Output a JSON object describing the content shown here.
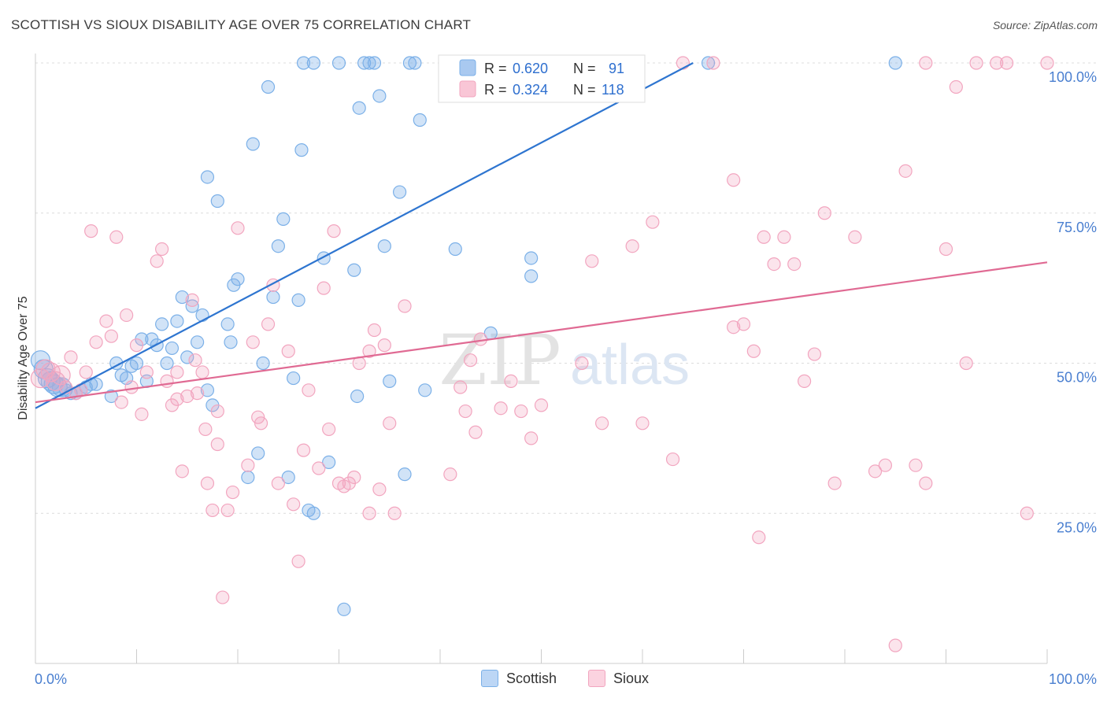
{
  "title": "SCOTTISH VS SIOUX DISABILITY AGE OVER 75 CORRELATION CHART",
  "source": "Source: ZipAtlas.com",
  "watermark": {
    "zip": "ZIP",
    "atlas": "atlas"
  },
  "chart_data": {
    "type": "scatter",
    "title": "SCOTTISH VS SIOUX DISABILITY AGE OVER 75 CORRELATION CHART",
    "xlabel": "",
    "ylabel": "Disability Age Over 75",
    "xlim": [
      0,
      100
    ],
    "ylim": [
      0,
      100
    ],
    "x_tick_labels": [
      "0.0%",
      "100.0%"
    ],
    "y_ticks": [
      25,
      50,
      75,
      100
    ],
    "y_tick_labels": [
      "25.0%",
      "50.0%",
      "75.0%",
      "100.0%"
    ],
    "grid": true,
    "legend_position": "top-center",
    "series": [
      {
        "name": "Scottish",
        "color": "#7bb0e8",
        "line_color": "#2e75d0",
        "stats": {
          "r_label": "R =",
          "r": "0.620",
          "n_label": "N =",
          "n": "91"
        },
        "trend": {
          "x": [
            0,
            65
          ],
          "y": [
            42.5,
            100.0
          ]
        },
        "points": [
          [
            0.5,
            50.5
          ],
          [
            0.8,
            49
          ],
          [
            1.2,
            47.5
          ],
          [
            1.5,
            47
          ],
          [
            1.8,
            46.5
          ],
          [
            2.2,
            46
          ],
          [
            2.6,
            46
          ],
          [
            3,
            45.5
          ],
          [
            3.5,
            45
          ],
          [
            4,
            45
          ],
          [
            4.5,
            45.5
          ],
          [
            5,
            46
          ],
          [
            5.5,
            46.5
          ],
          [
            6,
            46.5
          ],
          [
            7.5,
            44.5
          ],
          [
            8,
            50
          ],
          [
            8.5,
            48
          ],
          [
            9,
            47.5
          ],
          [
            9.5,
            49.5
          ],
          [
            10,
            50
          ],
          [
            10.5,
            54
          ],
          [
            11,
            47
          ],
          [
            11.5,
            54
          ],
          [
            12,
            53
          ],
          [
            12.5,
            56.5
          ],
          [
            13,
            50
          ],
          [
            13.5,
            52.5
          ],
          [
            14,
            57
          ],
          [
            14.5,
            61
          ],
          [
            15,
            51
          ],
          [
            15.5,
            59.5
          ],
          [
            16,
            53.5
          ],
          [
            16.5,
            58
          ],
          [
            17,
            45.5
          ],
          [
            17.5,
            43
          ],
          [
            17,
            81
          ],
          [
            18,
            77
          ],
          [
            19,
            56.5
          ],
          [
            19.3,
            53.5
          ],
          [
            19.6,
            63
          ],
          [
            20,
            64
          ],
          [
            21,
            31
          ],
          [
            21.5,
            86.5
          ],
          [
            22,
            35
          ],
          [
            22.5,
            50
          ],
          [
            23,
            96
          ],
          [
            23.5,
            61
          ],
          [
            24,
            69.5
          ],
          [
            24.5,
            74
          ],
          [
            25,
            31
          ],
          [
            25.5,
            47.5
          ],
          [
            26,
            60.5
          ],
          [
            26.3,
            85.5
          ],
          [
            27,
            25.5
          ],
          [
            27.5,
            25
          ],
          [
            28.5,
            67.5
          ],
          [
            29,
            33.5
          ],
          [
            30,
            100
          ],
          [
            30.5,
            9
          ],
          [
            31.5,
            65.5
          ],
          [
            31.8,
            44.5
          ],
          [
            32,
            92.5
          ],
          [
            32.5,
            100
          ],
          [
            33,
            100
          ],
          [
            33.5,
            100
          ],
          [
            34,
            94.5
          ],
          [
            34.5,
            69.5
          ],
          [
            35,
            47
          ],
          [
            36,
            78.5
          ],
          [
            36.5,
            31.5
          ],
          [
            37,
            100
          ],
          [
            37.5,
            100
          ],
          [
            38,
            90.5
          ],
          [
            38.5,
            45.5
          ],
          [
            41.5,
            69
          ],
          [
            45,
            55
          ],
          [
            49,
            67.5
          ],
          [
            49,
            64.5
          ],
          [
            51,
            100
          ],
          [
            52,
            100
          ],
          [
            59,
            100
          ],
          [
            66.5,
            100
          ],
          [
            85,
            100
          ],
          [
            26.5,
            100
          ],
          [
            27.5,
            100
          ]
        ]
      },
      {
        "name": "Sioux",
        "color": "#f2a5bf",
        "line_color": "#e06a93",
        "stats": {
          "r_label": "R =",
          "r": "0.324",
          "n_label": "N =",
          "n": "118"
        },
        "trend": {
          "x": [
            0,
            100
          ],
          "y": [
            43.5,
            66.8
          ]
        },
        "points": [
          [
            0.5,
            47.5
          ],
          [
            1,
            49
          ],
          [
            1.5,
            48.5
          ],
          [
            2,
            47
          ],
          [
            2.5,
            48
          ],
          [
            3,
            46
          ],
          [
            3.5,
            51
          ],
          [
            4,
            45
          ],
          [
            4.5,
            45.5
          ],
          [
            5,
            48.5
          ],
          [
            5.5,
            72
          ],
          [
            6,
            53.5
          ],
          [
            7,
            57
          ],
          [
            7.5,
            54.5
          ],
          [
            8,
            71
          ],
          [
            8.5,
            43.5
          ],
          [
            9,
            58
          ],
          [
            9.5,
            46
          ],
          [
            10,
            53
          ],
          [
            10.5,
            41.5
          ],
          [
            11,
            48.5
          ],
          [
            12,
            67
          ],
          [
            12.5,
            69
          ],
          [
            13,
            47
          ],
          [
            13.5,
            43
          ],
          [
            14,
            48.5
          ],
          [
            14.5,
            32
          ],
          [
            15,
            44.5
          ],
          [
            15.5,
            60.5
          ],
          [
            15.8,
            50.5
          ],
          [
            16,
            45
          ],
          [
            16.5,
            48.5
          ],
          [
            16.8,
            39
          ],
          [
            17,
            30
          ],
          [
            17.5,
            25.5
          ],
          [
            18,
            36.5
          ],
          [
            18.5,
            11
          ],
          [
            19,
            25.5
          ],
          [
            19.5,
            28.5
          ],
          [
            20,
            72.5
          ],
          [
            21,
            33
          ],
          [
            21.5,
            53.5
          ],
          [
            22,
            41
          ],
          [
            22.3,
            40
          ],
          [
            23,
            56.5
          ],
          [
            23.5,
            63
          ],
          [
            24,
            30
          ],
          [
            25,
            52
          ],
          [
            25.5,
            26.5
          ],
          [
            26,
            17
          ],
          [
            26.5,
            35.5
          ],
          [
            27,
            45.5
          ],
          [
            28,
            32.5
          ],
          [
            28.5,
            62.5
          ],
          [
            29,
            39
          ],
          [
            29.5,
            72
          ],
          [
            30,
            30
          ],
          [
            30.5,
            29.5
          ],
          [
            31,
            30
          ],
          [
            31.5,
            31
          ],
          [
            32,
            50
          ],
          [
            33,
            52
          ],
          [
            33.5,
            55.5
          ],
          [
            33,
            25
          ],
          [
            34,
            29
          ],
          [
            34.5,
            53
          ],
          [
            35,
            40
          ],
          [
            35.5,
            25
          ],
          [
            36.5,
            59.5
          ],
          [
            41,
            31.5
          ],
          [
            42,
            46
          ],
          [
            42.5,
            42
          ],
          [
            43,
            50.5
          ],
          [
            43.5,
            38.5
          ],
          [
            44,
            54
          ],
          [
            46,
            42.5
          ],
          [
            47,
            47
          ],
          [
            48,
            42
          ],
          [
            49,
            37.5
          ],
          [
            50,
            43
          ],
          [
            54,
            50
          ],
          [
            55,
            67
          ],
          [
            56,
            40
          ],
          [
            59,
            69.5
          ],
          [
            60,
            40
          ],
          [
            61,
            73.5
          ],
          [
            63,
            34
          ],
          [
            64,
            100
          ],
          [
            67,
            100
          ],
          [
            69,
            56
          ],
          [
            70,
            56.5
          ],
          [
            71,
            52
          ],
          [
            71.5,
            21
          ],
          [
            72,
            71
          ],
          [
            73,
            66.5
          ],
          [
            74,
            71
          ],
          [
            75,
            66.5
          ],
          [
            76,
            47
          ],
          [
            77,
            51.5
          ],
          [
            78,
            75
          ],
          [
            79,
            30
          ],
          [
            81,
            71
          ],
          [
            83,
            32
          ],
          [
            84,
            33
          ],
          [
            86,
            82
          ],
          [
            88,
            30
          ],
          [
            90,
            69
          ],
          [
            91,
            96
          ],
          [
            92,
            50
          ],
          [
            96,
            100
          ],
          [
            98,
            25
          ],
          [
            100,
            100
          ],
          [
            85,
            3
          ],
          [
            88,
            100
          ],
          [
            93,
            100
          ],
          [
            95,
            100
          ],
          [
            87,
            33
          ],
          [
            69,
            80.5
          ],
          [
            18,
            42
          ],
          [
            14,
            44
          ]
        ]
      }
    ]
  }
}
